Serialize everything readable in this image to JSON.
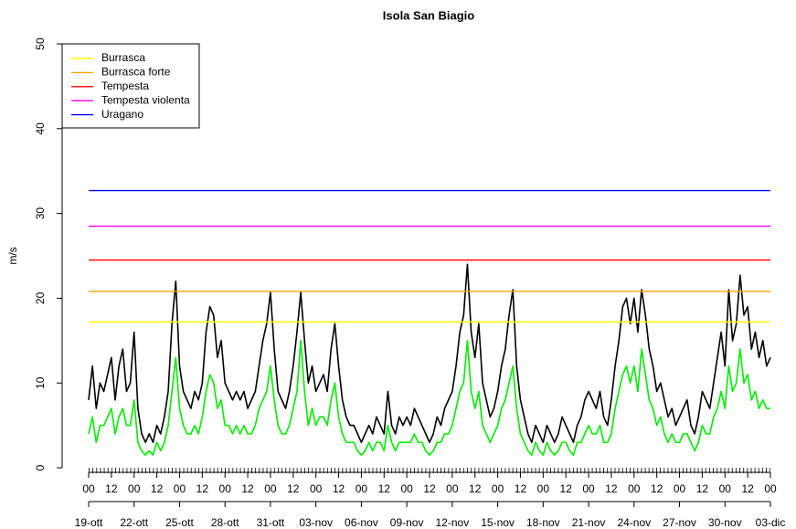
{
  "chart_data": {
    "type": "line",
    "title": "Isola San Biagio",
    "y_label": "m/s",
    "ylim": [
      0,
      50
    ],
    "yticks": [
      0,
      10,
      20,
      30,
      40,
      50
    ],
    "xlim": [
      0,
      1080
    ],
    "xticks": [
      {
        "value": 0,
        "label": "00"
      },
      {
        "value": 36,
        "label": "12"
      },
      {
        "value": 72,
        "label": "00"
      },
      {
        "value": 108,
        "label": "12"
      },
      {
        "value": 144,
        "label": "00"
      },
      {
        "value": 180,
        "label": "12"
      },
      {
        "value": 216,
        "label": "00"
      },
      {
        "value": 252,
        "label": "12"
      },
      {
        "value": 288,
        "label": "00"
      },
      {
        "value": 324,
        "label": "12"
      },
      {
        "value": 360,
        "label": "00"
      },
      {
        "value": 396,
        "label": "12"
      },
      {
        "value": 432,
        "label": "00"
      },
      {
        "value": 468,
        "label": "12"
      },
      {
        "value": 504,
        "label": "00"
      },
      {
        "value": 540,
        "label": "12"
      },
      {
        "value": 576,
        "label": "00"
      },
      {
        "value": 612,
        "label": "12"
      },
      {
        "value": 648,
        "label": "00"
      },
      {
        "value": 684,
        "label": "12"
      },
      {
        "value": 720,
        "label": "00"
      },
      {
        "value": 756,
        "label": "12"
      },
      {
        "value": 792,
        "label": "00"
      },
      {
        "value": 828,
        "label": "12"
      },
      {
        "value": 864,
        "label": "00"
      },
      {
        "value": 900,
        "label": "12"
      },
      {
        "value": 936,
        "label": "00"
      },
      {
        "value": 972,
        "label": "12"
      },
      {
        "value": 1008,
        "label": "00"
      },
      {
        "value": 1044,
        "label": "12"
      },
      {
        "value": 1080,
        "label": "00"
      }
    ],
    "date_ticks": [
      {
        "value": 0,
        "label": "19-ott"
      },
      {
        "value": 72,
        "label": "22-ott"
      },
      {
        "value": 144,
        "label": "25-ott"
      },
      {
        "value": 216,
        "label": "28-ott"
      },
      {
        "value": 288,
        "label": "31-ott"
      },
      {
        "value": 360,
        "label": "03-nov"
      },
      {
        "value": 432,
        "label": "06-nov"
      },
      {
        "value": 504,
        "label": "09-nov"
      },
      {
        "value": 576,
        "label": "12-nov"
      },
      {
        "value": 648,
        "label": "15-nov"
      },
      {
        "value": 720,
        "label": "18-nov"
      },
      {
        "value": 792,
        "label": "21-nov"
      },
      {
        "value": 864,
        "label": "24-nov"
      },
      {
        "value": 936,
        "label": "27-nov"
      },
      {
        "value": 1008,
        "label": "30-nov"
      },
      {
        "value": 1080,
        "label": "03-dic"
      }
    ],
    "x": [
      0,
      6,
      12,
      18,
      24,
      30,
      36,
      42,
      48,
      54,
      60,
      66,
      72,
      78,
      84,
      90,
      96,
      102,
      108,
      114,
      120,
      126,
      132,
      138,
      144,
      150,
      156,
      162,
      168,
      174,
      180,
      186,
      192,
      198,
      204,
      210,
      216,
      222,
      228,
      234,
      240,
      246,
      252,
      258,
      264,
      270,
      276,
      282,
      288,
      294,
      300,
      306,
      312,
      318,
      324,
      330,
      336,
      342,
      348,
      354,
      360,
      366,
      372,
      378,
      384,
      390,
      396,
      402,
      408,
      414,
      420,
      426,
      432,
      438,
      444,
      450,
      456,
      462,
      468,
      474,
      480,
      486,
      492,
      498,
      504,
      510,
      516,
      522,
      528,
      534,
      540,
      546,
      552,
      558,
      564,
      570,
      576,
      582,
      588,
      594,
      600,
      606,
      612,
      618,
      624,
      630,
      636,
      642,
      648,
      654,
      660,
      666,
      672,
      678,
      684,
      690,
      696,
      702,
      708,
      714,
      720,
      726,
      732,
      738,
      744,
      750,
      756,
      762,
      768,
      774,
      780,
      786,
      792,
      798,
      804,
      810,
      816,
      822,
      828,
      834,
      840,
      846,
      852,
      858,
      864,
      870,
      876,
      882,
      888,
      894,
      900,
      906,
      912,
      918,
      924,
      930,
      936,
      942,
      948,
      954,
      960,
      966,
      972,
      978,
      984,
      990,
      996,
      1002,
      1008,
      1014,
      1020,
      1026,
      1032,
      1038,
      1044,
      1050,
      1056,
      1062,
      1068,
      1074,
      1080
    ],
    "series": [
      {
        "color": "#000000",
        "values": [
          8,
          12,
          7,
          10,
          9,
          11,
          13,
          8,
          12,
          14,
          9,
          10,
          16,
          7,
          4,
          3,
          4,
          3,
          5,
          4,
          6,
          9,
          17,
          22,
          12,
          9,
          8,
          7,
          9,
          8,
          10,
          16,
          19,
          18,
          13,
          15,
          10,
          9,
          8,
          9,
          8,
          9,
          7,
          8,
          9,
          12,
          15,
          17,
          20.7,
          14,
          9,
          8,
          7,
          9,
          12,
          16,
          20.7,
          15,
          10,
          12,
          9,
          10,
          11,
          9,
          14,
          17,
          12,
          8,
          6,
          5,
          5,
          4,
          3,
          4,
          5,
          4,
          6,
          5,
          4,
          9,
          5,
          4,
          6,
          5,
          6,
          5,
          7,
          6,
          5,
          4,
          3,
          4,
          6,
          5,
          7,
          8,
          9,
          12,
          16,
          18,
          24,
          16,
          13,
          17,
          10,
          8,
          6,
          7,
          9,
          12,
          14,
          18,
          21,
          12,
          8,
          6,
          4,
          3,
          5,
          4,
          3,
          5,
          4,
          3,
          4,
          6,
          5,
          4,
          3,
          5,
          6,
          8,
          9,
          8,
          7,
          9,
          6,
          5,
          8,
          12,
          15,
          19,
          20,
          17,
          20,
          16,
          21,
          18,
          14,
          12,
          9,
          10,
          8,
          6,
          7,
          5,
          6,
          7,
          8,
          5,
          4,
          6,
          9,
          8,
          7,
          10,
          13,
          16,
          12,
          21,
          15,
          17,
          22.7,
          18,
          19,
          14,
          16,
          13,
          15,
          12,
          13
        ]
      },
      {
        "color": "#00ee00",
        "values": [
          4,
          6,
          3,
          5,
          5,
          6,
          7,
          4,
          6,
          7,
          5,
          5,
          8,
          3,
          2,
          1.5,
          2,
          1.5,
          3,
          2,
          3,
          5,
          9,
          13,
          7,
          5,
          4,
          4,
          5,
          4,
          6,
          9,
          11,
          10,
          7,
          8,
          5,
          5,
          4,
          5,
          4,
          5,
          4,
          4,
          5,
          7,
          8,
          9,
          12,
          8,
          5,
          4,
          4,
          5,
          7,
          9,
          15,
          9,
          5,
          7,
          5,
          6,
          6,
          5,
          8,
          10,
          6,
          4,
          3,
          3,
          3,
          2,
          1.5,
          2,
          3,
          2,
          3,
          3,
          2,
          5,
          3,
          2,
          3,
          3,
          3,
          3,
          4,
          3,
          3,
          2,
          1.5,
          2,
          3,
          3,
          4,
          4,
          5,
          7,
          9,
          10,
          15,
          9,
          7,
          9,
          5,
          4,
          3,
          4,
          5,
          7,
          8,
          10,
          12,
          7,
          4,
          3,
          2,
          1.5,
          3,
          2,
          1.5,
          3,
          2,
          1.5,
          2,
          3,
          3,
          2,
          1.5,
          3,
          3,
          4,
          5,
          4,
          4,
          5,
          3,
          3,
          4,
          7,
          9,
          11,
          12,
          10,
          12,
          9,
          14,
          11,
          8,
          7,
          5,
          6,
          4,
          3,
          4,
          3,
          3,
          4,
          4,
          3,
          2,
          3,
          5,
          4,
          4,
          6,
          7,
          9,
          7,
          12,
          9,
          10,
          14,
          10,
          11,
          8,
          9,
          7,
          8,
          7,
          7
        ]
      }
    ],
    "hlines": [
      {
        "name": "Burrasca",
        "value": 17.2,
        "color": "#ffff00"
      },
      {
        "name": "Burrasca forte",
        "value": 20.8,
        "color": "#ffa500"
      },
      {
        "name": "Tempesta",
        "value": 24.5,
        "color": "#ff0000"
      },
      {
        "name": "Tempesta violenta",
        "value": 28.5,
        "color": "#ff00ff"
      },
      {
        "name": "Uragano",
        "value": 32.7,
        "color": "#0000ff"
      }
    ],
    "legend": "top-left"
  }
}
